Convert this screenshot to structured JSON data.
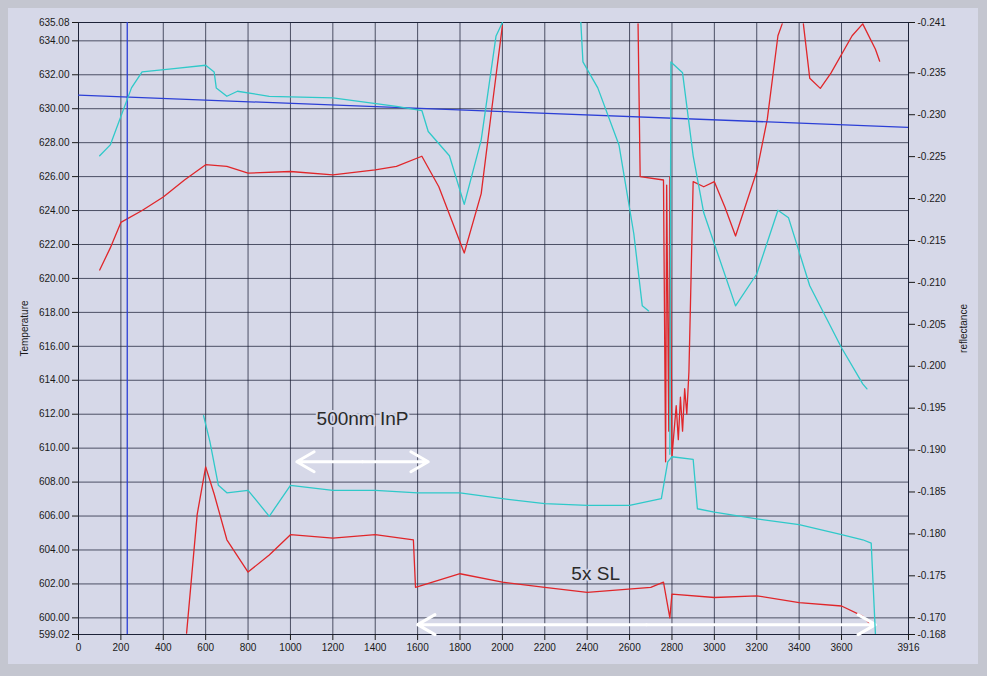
{
  "chart_data": {
    "type": "line",
    "x_label": null,
    "y_label": "Temperature",
    "y2_label": "reflectance",
    "xlim": [
      0,
      3916
    ],
    "xticks": [
      0,
      200,
      400,
      600,
      800,
      1000,
      1200,
      1400,
      1600,
      1800,
      2000,
      2200,
      2400,
      2600,
      2800,
      3000,
      3200,
      3400,
      3600,
      3916
    ],
    "ylim": [
      599.02,
      635.08
    ],
    "yticks": [
      {
        "value": 599.02,
        "label": "599.02"
      },
      {
        "value": 600,
        "label": "600.00"
      },
      {
        "value": 602,
        "label": "602.00"
      },
      {
        "value": 604,
        "label": "604.00"
      },
      {
        "value": 606,
        "label": "606.00"
      },
      {
        "value": 608,
        "label": "608.00"
      },
      {
        "value": 610,
        "label": "610.00"
      },
      {
        "value": 612,
        "label": "612.00"
      },
      {
        "value": 614,
        "label": "614.00"
      },
      {
        "value": 616,
        "label": "616.00"
      },
      {
        "value": 618,
        "label": "618.00"
      },
      {
        "value": 620,
        "label": "620.00"
      },
      {
        "value": 622,
        "label": "622.00"
      },
      {
        "value": 624,
        "label": "624.00"
      },
      {
        "value": 626,
        "label": "626.00"
      },
      {
        "value": 628,
        "label": "628.00"
      },
      {
        "value": 630,
        "label": "630.00"
      },
      {
        "value": 632,
        "label": "632.00"
      },
      {
        "value": 634,
        "label": "634.00"
      },
      {
        "value": 635.08,
        "label": "635.08"
      }
    ],
    "y2lim": [
      -0.168,
      -0.241
    ],
    "y2ticks": [
      -0.241,
      -0.235,
      {
        "value": -0.23,
        "label": "-0.230"
      },
      -0.225,
      {
        "value": -0.22,
        "label": "-0.220"
      },
      -0.215,
      {
        "value": -0.21,
        "label": "-0.210"
      },
      -0.205,
      {
        "value": -0.2,
        "label": "-0.200"
      },
      -0.195,
      {
        "value": -0.19,
        "label": "-0.190"
      },
      -0.185,
      {
        "value": -0.18,
        "label": "-0.180"
      },
      -0.175,
      {
        "value": -0.17,
        "label": "-0.170"
      },
      -0.168
    ],
    "grid": true,
    "series": [
      {
        "color": "#e0262a",
        "x": [
          100,
          150,
          200,
          300,
          400,
          500,
          600,
          700,
          800,
          1000,
          1200,
          1400,
          1500,
          1620,
          1700,
          1820,
          1900,
          1950,
          2000,
          2010,
          2640,
          2650,
          2760,
          2770,
          2775,
          2785,
          2790,
          2800,
          2820,
          2830,
          2840,
          2850,
          2860,
          2870,
          2880,
          2890,
          2900,
          2950,
          3000,
          3050,
          3100,
          3200,
          3250,
          3300,
          3320,
          3330,
          3420,
          3450,
          3500,
          3550,
          3650,
          3700,
          3760,
          3780
        ],
        "values": [
          620.5,
          621.8,
          623.3,
          624.0,
          624.8,
          625.8,
          626.7,
          626.6,
          626.2,
          626.3,
          626.1,
          626.4,
          626.6,
          627.2,
          625.4,
          621.5,
          625.0,
          630.0,
          634.9,
          null,
          635.0,
          626.0,
          625.8,
          609.2,
          625.5,
          611.0,
          626.0,
          609.5,
          612.5,
          610.5,
          613.0,
          611.0,
          613.5,
          612.0,
          614.5,
          620.0,
          625.7,
          625.4,
          625.7,
          624.2,
          622.5,
          626.3,
          629.4,
          634.3,
          635.0,
          null,
          635.0,
          631.8,
          631.2,
          632.1,
          634.3,
          635.0,
          633.5,
          632.8
        ]
      },
      {
        "color": "#2fc9c9",
        "axis": "y2",
        "x": [
          100,
          150,
          250,
          300,
          450,
          600,
          640,
          650,
          700,
          750,
          900,
          1200,
          1500,
          1620,
          1650,
          1750,
          1820,
          1900,
          1970,
          2000,
          2010,
          2370,
          2380,
          2450,
          2550,
          2620,
          2660,
          2690,
          2700,
          2790,
          2795,
          2850,
          2900,
          2950,
          3100,
          3200,
          3300,
          3350,
          3450,
          3600,
          3700,
          3720
        ],
        "values": [
          -0.2251,
          -0.2264,
          -0.2332,
          -0.2351,
          -0.2355,
          -0.2359,
          -0.2351,
          -0.2332,
          -0.2322,
          -0.2328,
          -0.2322,
          -0.232,
          -0.231,
          -0.2305,
          -0.228,
          -0.2251,
          -0.2193,
          -0.227,
          -0.2394,
          -0.241,
          null,
          -0.241,
          -0.2363,
          -0.2332,
          -0.2264,
          -0.2158,
          -0.2072,
          -0.2066,
          null,
          -0.1895,
          -0.2363,
          -0.235,
          -0.2251,
          -0.2183,
          -0.2072,
          -0.211,
          -0.2186,
          -0.2177,
          -0.2096,
          -0.2022,
          -0.1979,
          -0.1973
        ]
      },
      {
        "color": "#e0262a",
        "x": [
          510,
          560,
          600,
          640,
          700,
          800,
          900,
          1000,
          1200,
          1400,
          1580,
          1590,
          1800,
          2000,
          2200,
          2400,
          2700,
          2760,
          2790,
          2800,
          3000,
          3200,
          3400,
          3600,
          3700,
          3730
        ],
        "values": [
          599.1,
          606.1,
          608.9,
          607.3,
          604.6,
          602.7,
          603.7,
          604.9,
          604.7,
          604.9,
          604.6,
          601.8,
          602.6,
          602.1,
          601.8,
          601.5,
          601.8,
          602.1,
          600.0,
          601.4,
          601.2,
          601.3,
          600.9,
          600.7,
          600.1,
          599.7
        ]
      },
      {
        "color": "#2fc9c9",
        "axis": "y2",
        "x": [
          590,
          620,
          660,
          700,
          800,
          900,
          1000,
          1200,
          1400,
          1600,
          1800,
          2000,
          2200,
          2400,
          2600,
          2750,
          2780,
          2800,
          2900,
          2920,
          3000,
          3200,
          3400,
          3600,
          3700,
          3740,
          3760
        ],
        "values": [
          -0.1941,
          -0.191,
          -0.1858,
          -0.1849,
          -0.1852,
          -0.1821,
          -0.1858,
          -0.1852,
          -0.1852,
          -0.1849,
          -0.1849,
          -0.1842,
          -0.1836,
          -0.1834,
          -0.1834,
          -0.1842,
          -0.1886,
          -0.1892,
          -0.1889,
          -0.183,
          -0.1826,
          -0.1818,
          -0.1811,
          -0.1799,
          -0.1793,
          -0.1789,
          -0.168
        ]
      },
      {
        "color": "#2c3fd6",
        "x": [
          0,
          3916
        ],
        "values": [
          630.8,
          628.9
        ]
      },
      {
        "color": "#2c3fd6",
        "x": [
          230,
          230
        ],
        "values": [
          599.02,
          635.08
        ]
      }
    ],
    "annotations": [
      {
        "text": "500nm InP",
        "x": 1340,
        "y": 611.7,
        "arrow_x": [
          1030,
          1650
        ],
        "arrow_y": 609.2
      },
      {
        "text": "5x SL",
        "x": 2440,
        "y": 602.6,
        "arrow_x": [
          1600,
          3760
        ],
        "arrow_y": 599.6
      }
    ]
  }
}
